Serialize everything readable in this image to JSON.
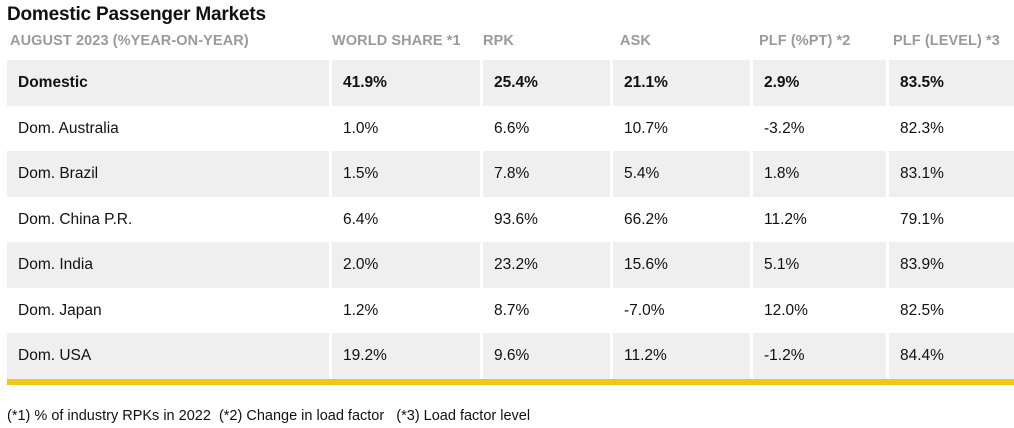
{
  "title": "Domestic Passenger Markets",
  "headers": [
    "AUGUST 2023 (%YEAR-ON-YEAR)",
    "WORLD SHARE *1",
    "RPK",
    "ASK",
    "PLF (%PT) *2",
    "PLF (LEVEL) *3"
  ],
  "rows": [
    [
      "Domestic",
      "41.9%",
      "25.4%",
      "21.1%",
      "2.9%",
      "83.5%"
    ],
    [
      "Dom. Australia",
      "1.0%",
      "6.6%",
      "10.7%",
      "-3.2%",
      "82.3%"
    ],
    [
      "Dom. Brazil",
      "1.5%",
      "7.8%",
      "5.4%",
      "1.8%",
      "83.1%"
    ],
    [
      "Dom. China P.R.",
      "6.4%",
      "93.6%",
      "66.2%",
      "11.2%",
      "79.1%"
    ],
    [
      "Dom. India",
      "2.0%",
      "23.2%",
      "15.6%",
      "5.1%",
      "83.9%"
    ],
    [
      "Dom. Japan",
      "1.2%",
      "8.7%",
      "-7.0%",
      "12.0%",
      "82.5%"
    ],
    [
      "Dom. USA",
      "19.2%",
      "9.6%",
      "11.2%",
      "-1.2%",
      "84.4%"
    ]
  ],
  "footnote": "(*1) % of industry RPKs in 2022  (*2) Change in load factor   (*3) Load factor level",
  "colors": {
    "accent_bar": "#f2c518",
    "shaded_row": "#efefef",
    "header_text": "#9a9a9a"
  }
}
